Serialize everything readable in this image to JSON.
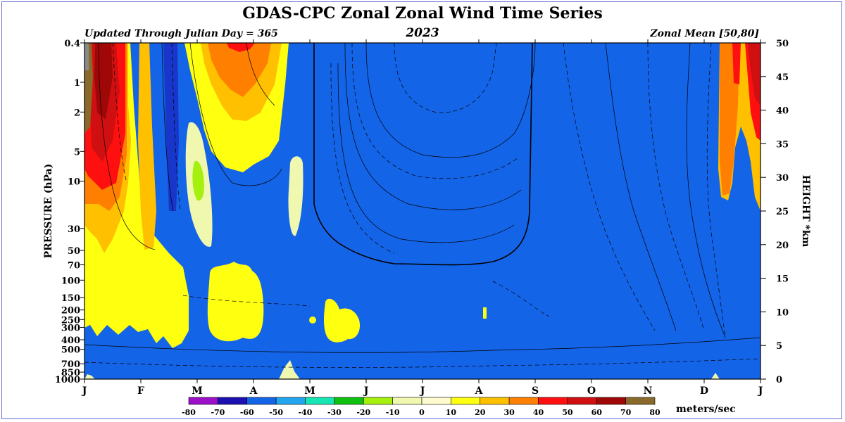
{
  "header": {
    "title": "GDAS-CPC Zonal Zonal Wind Time Series",
    "year": "2023",
    "updated": "Updated Through Julian Day = 365",
    "region": "Zonal Mean [50,80]"
  },
  "chart_data": {
    "type": "heatmap",
    "title": "GDAS-CPC Zonal Zonal Wind Time Series",
    "ylabel": "PRESSURE (hPa)",
    "y2label": "HEIGHT *km",
    "x_ticks": [
      "J",
      "F",
      "M",
      "A",
      "M",
      "J",
      "J",
      "A",
      "S",
      "O",
      "N",
      "D",
      "J"
    ],
    "pressure_ticks": [
      "0.4",
      "1",
      "2",
      "5",
      "10",
      "30",
      "50",
      "70",
      "100",
      "150",
      "200",
      "250",
      "300",
      "400",
      "500",
      "700",
      "850",
      "1000"
    ],
    "height_ticks": [
      "0",
      "5",
      "10",
      "15",
      "20",
      "25",
      "30",
      "35",
      "40",
      "45",
      "50"
    ],
    "colorbar": {
      "unit": "meters/sec",
      "labels": [
        "-80",
        "-70",
        "-60",
        "-50",
        "-40",
        "-30",
        "-20",
        "-10",
        "0",
        "10",
        "20",
        "30",
        "40",
        "50",
        "60",
        "70",
        "80"
      ],
      "colors": [
        "#9b10c8",
        "#1c10b0",
        "#1464e8",
        "#22a6f0",
        "#16e6b4",
        "#10c010",
        "#a6f010",
        "#f0f8b0",
        "#fffbd0",
        "#ffff10",
        "#ffc000",
        "#ff8000",
        "#ff1010",
        "#d01010",
        "#a00808",
        "#8a6a2a"
      ]
    }
  }
}
